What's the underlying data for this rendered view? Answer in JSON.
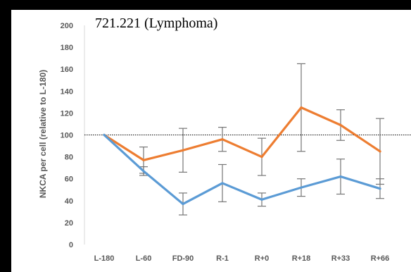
{
  "chart_data": {
    "type": "line",
    "title": "721.221 (Lymphoma)",
    "xlabel": "",
    "ylabel": "NKCA per cell (relative to L-180)",
    "categories": [
      "L-180",
      "L-60",
      "FD-90",
      "R-1",
      "R+0",
      "R+18",
      "R+33",
      "R+66"
    ],
    "ylim": [
      0,
      200
    ],
    "yticks": [
      0,
      20,
      40,
      60,
      80,
      100,
      120,
      140,
      160,
      180,
      200
    ],
    "reference_line": 100,
    "grid": false,
    "series": [
      {
        "color": "#ED7D31",
        "values": [
          100,
          77,
          86,
          96,
          80,
          125,
          109,
          85
        ],
        "error": [
          0,
          12,
          20,
          11,
          17,
          40,
          14,
          30
        ]
      },
      {
        "color": "#5B9BD5",
        "values": [
          100,
          67,
          37,
          56,
          41,
          52,
          62,
          51
        ],
        "error": [
          0,
          4,
          10,
          17,
          6,
          8,
          16,
          9
        ]
      }
    ]
  }
}
